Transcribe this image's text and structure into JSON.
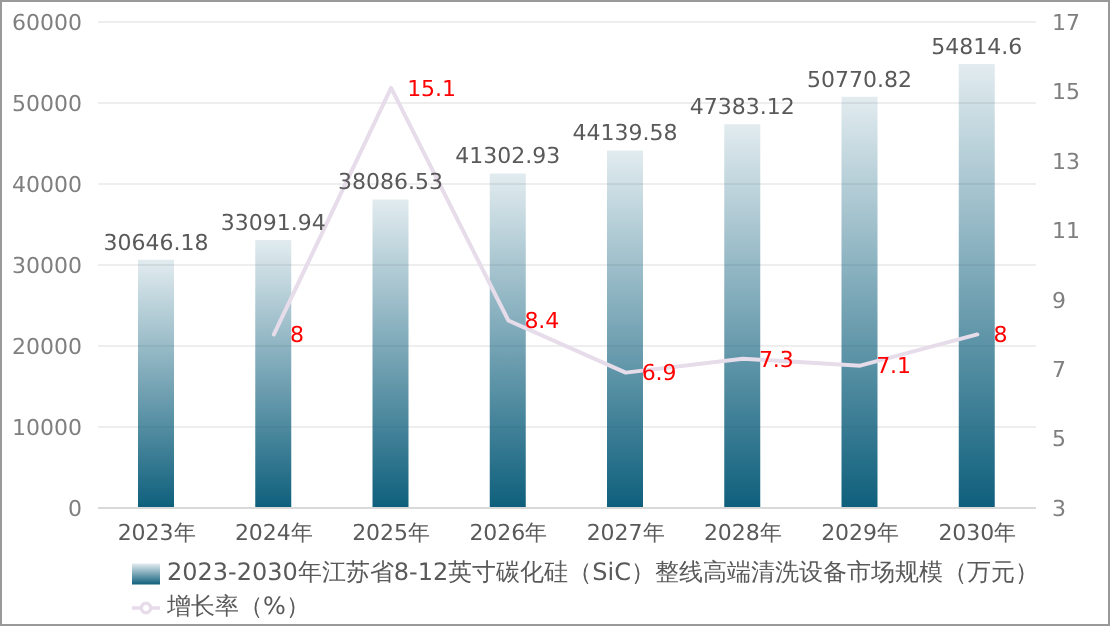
{
  "chart_data": {
    "type": "bar",
    "categories": [
      "2023年",
      "2024年",
      "2025年",
      "2026年",
      "2027年",
      "2028年",
      "2029年",
      "2030年"
    ],
    "series": [
      {
        "name": "2023-2030年江苏省8-12英寸碳化硅（SiC）整线高端清洗设备市场规模（万元）",
        "color": "#0e5f7c",
        "values": [
          30646.18,
          33091.94,
          38086.53,
          41302.93,
          44139.58,
          47383.12,
          50770.82,
          54814.6
        ]
      },
      {
        "name": "增长率（%）",
        "type": "line",
        "axis": "y2",
        "color": "#e6dcea",
        "values": [
          null,
          8,
          15.1,
          8.4,
          6.9,
          7.3,
          7.1,
          8
        ]
      }
    ],
    "ylim": [
      0,
      60000
    ],
    "yticks": [
      0,
      10000,
      20000,
      30000,
      40000,
      50000,
      60000
    ],
    "y2lim": [
      3,
      17
    ],
    "y2ticks": [
      3,
      5,
      7,
      9,
      11,
      13,
      15,
      17
    ],
    "grid": "y",
    "legend": "bottom",
    "data_labels": true,
    "marker": "none"
  }
}
